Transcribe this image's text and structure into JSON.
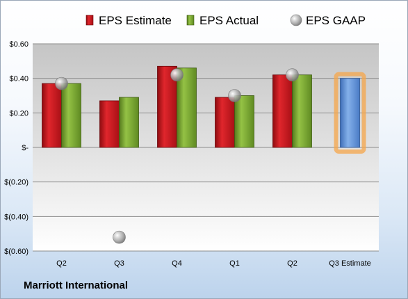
{
  "company": "Marriott International",
  "chart_data": {
    "type": "bar",
    "categories": [
      "Q2",
      "Q3",
      "Q4",
      "Q1",
      "Q2",
      "Q3 Estimate"
    ],
    "series": [
      {
        "name": "EPS Estimate",
        "values": [
          0.37,
          0.27,
          0.47,
          0.29,
          0.42,
          null
        ],
        "color": "#c0141a"
      },
      {
        "name": "EPS Actual",
        "values": [
          0.37,
          0.29,
          0.46,
          0.3,
          0.42,
          null
        ],
        "color": "#6e9b2a"
      },
      {
        "name": "EPS GAAP",
        "values": [
          0.37,
          -0.52,
          0.42,
          0.3,
          0.42,
          null
        ],
        "color": "#9a9a9a"
      }
    ],
    "estimate": {
      "category": "Q3 Estimate",
      "value": 0.4,
      "color": "#5b8fd6",
      "highlight": "#f5a54a"
    },
    "yticks": [
      {
        "value": 0.6,
        "label": "$0.60"
      },
      {
        "value": 0.4,
        "label": "$0.40"
      },
      {
        "value": 0.2,
        "label": "$0.20"
      },
      {
        "value": 0,
        "label": "$-"
      },
      {
        "value": -0.2,
        "label": "$(0.20)"
      },
      {
        "value": -0.4,
        "label": "$(0.40)"
      },
      {
        "value": -0.6,
        "label": "$(0.60)"
      }
    ],
    "ylim": [
      -0.6,
      0.6
    ],
    "grid": true,
    "legend": "top"
  }
}
